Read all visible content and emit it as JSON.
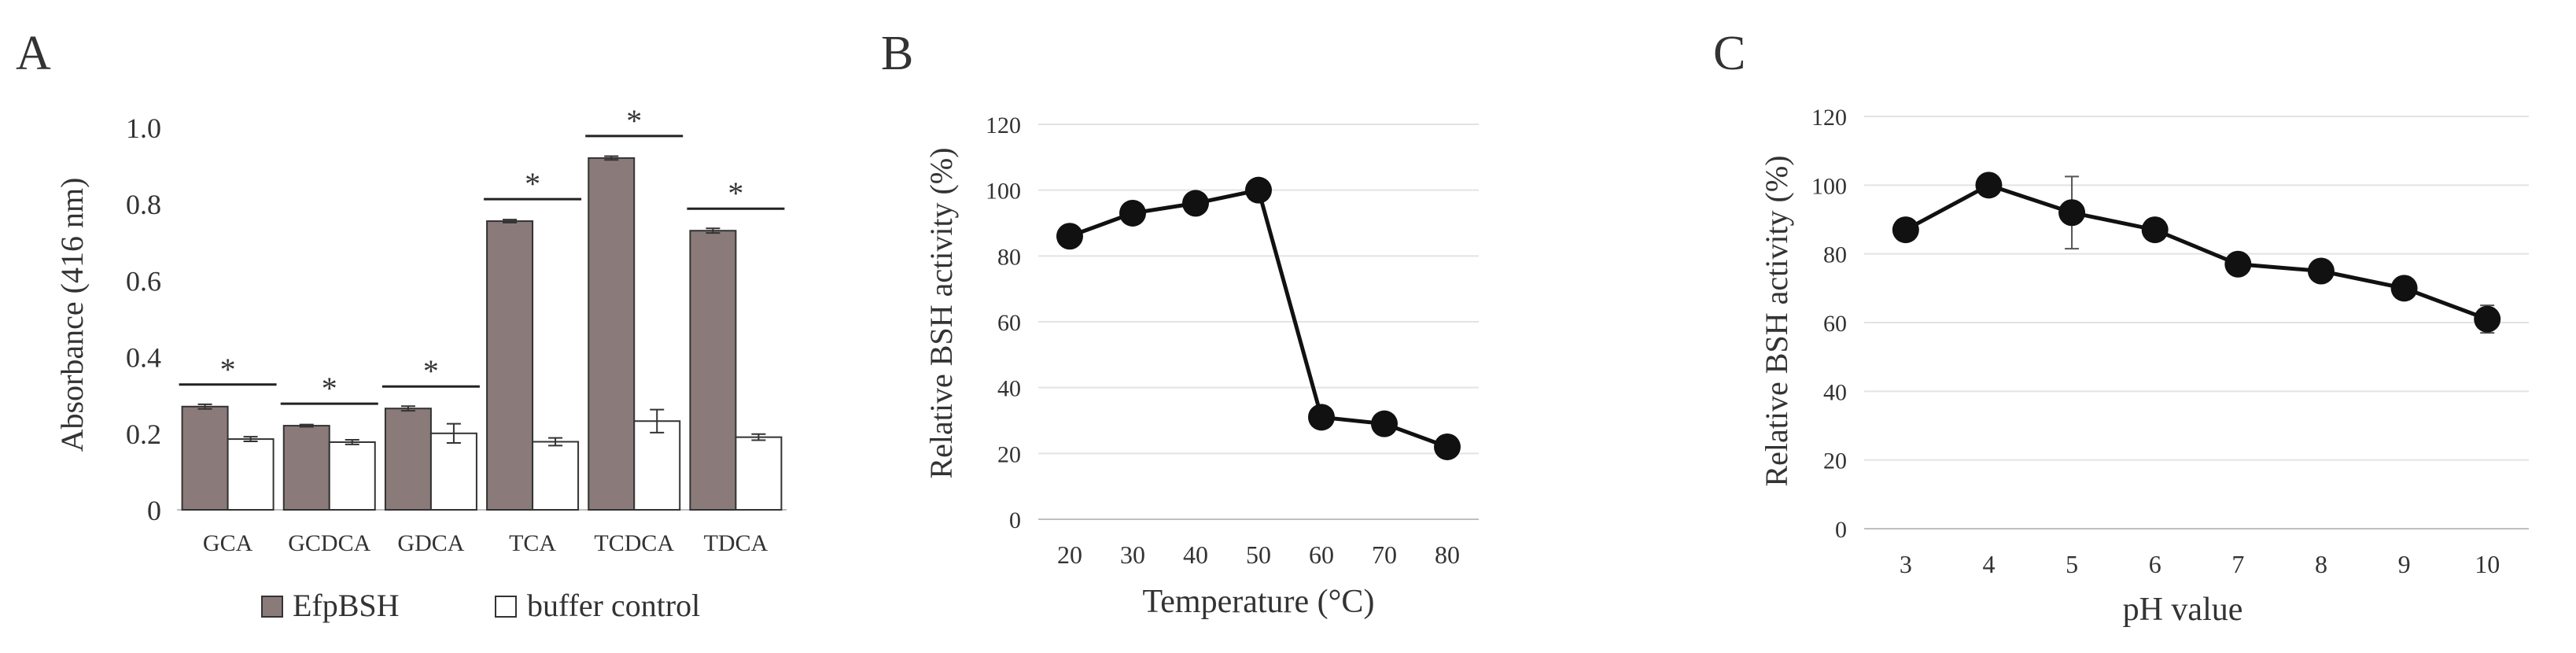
{
  "panels": [
    {
      "letter": "A",
      "chart_data": {
        "type": "bar",
        "title": "",
        "xlabel": "",
        "ylabel": "Absorbance (416 nm)",
        "ylim": [
          0,
          1.0
        ],
        "yticks": [
          "0",
          "0.2",
          "0.4",
          "0.6",
          "0.8",
          "1.0"
        ],
        "grid": false,
        "legend_position": "bottom",
        "categories": [
          "GCA",
          "GCDCA",
          "GDCA",
          "TCA",
          "TCDCA",
          "TDCA"
        ],
        "series": [
          {
            "name": "EfpBSH",
            "color": "#8a7b7a",
            "values": [
              0.27,
              0.22,
              0.265,
              0.755,
              0.92,
              0.73
            ],
            "errors": [
              0.006,
              0.003,
              0.006,
              0.004,
              0.005,
              0.006
            ]
          },
          {
            "name": "buffer control",
            "color": "#ffffff",
            "values": [
              0.185,
              0.177,
              0.2,
              0.178,
              0.232,
              0.19
            ],
            "errors": [
              0.006,
              0.006,
              0.025,
              0.01,
              0.03,
              0.008
            ]
          }
        ],
        "significance": [
          "*",
          "*",
          "*",
          "*",
          "*",
          "*"
        ]
      }
    },
    {
      "letter": "B",
      "chart_data": {
        "type": "line",
        "title": "",
        "xlabel": "Temperature (°C)",
        "ylabel": "Relative BSH activity (%)",
        "ylim": [
          0,
          120
        ],
        "yticks": [
          "0",
          "20",
          "40",
          "60",
          "80",
          "100",
          "120"
        ],
        "grid": true,
        "x": [
          "20",
          "30",
          "40",
          "50",
          "60",
          "70",
          "80"
        ],
        "series": [
          {
            "values": [
              86,
              93,
              96,
              100,
              31,
              29,
              22
            ],
            "errors": [
              1,
              1,
              1,
              1,
              1,
              1,
              1
            ]
          }
        ]
      }
    },
    {
      "letter": "C",
      "chart_data": {
        "type": "line",
        "title": "",
        "xlabel": "pH value",
        "ylabel": "Relative BSH activity (%)",
        "ylim": [
          0,
          120
        ],
        "yticks": [
          "0",
          "20",
          "40",
          "60",
          "80",
          "100",
          "120"
        ],
        "grid": true,
        "x": [
          "3",
          "4",
          "5",
          "6",
          "7",
          "8",
          "9",
          "10"
        ],
        "series": [
          {
            "values": [
              87,
              100,
              92,
              87,
              77,
              75,
              70,
              61
            ],
            "errors": [
              1,
              1,
              10.5,
              1,
              1,
              1,
              1,
              4
            ]
          }
        ]
      }
    }
  ]
}
